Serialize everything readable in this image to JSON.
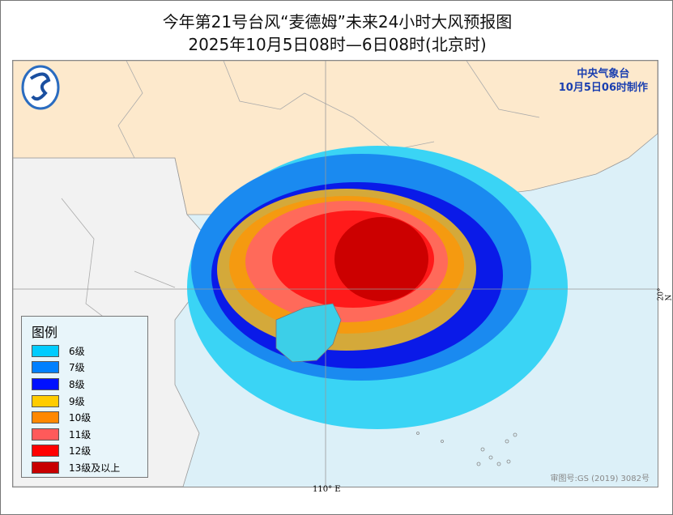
{
  "title": "今年第21号台风“麦德姆”未来24小时大风预报图",
  "subtitle": "2025年10月5日08时—6日08时(北京时)",
  "agency": {
    "name": "中央气象台",
    "issued": "10月5日06时制作"
  },
  "legend": {
    "title": "图例",
    "items": [
      {
        "label": "6级",
        "color": "#00ccff"
      },
      {
        "label": "7级",
        "color": "#0080ff"
      },
      {
        "label": "8级",
        "color": "#0010ff"
      },
      {
        "label": "9级",
        "color": "#ffcc00"
      },
      {
        "label": "10级",
        "color": "#ff8800"
      },
      {
        "label": "11级",
        "color": "#ff5a5a"
      },
      {
        "label": "12级",
        "color": "#ff0000"
      },
      {
        "label": "13级及以上",
        "color": "#c80000"
      }
    ]
  },
  "axes": {
    "lon_label": "110° E",
    "lat_label": "20° N"
  },
  "approval": "审图号:GS (2019) 3082号",
  "colors": {
    "sea": "#dcf0f8",
    "land_china": "#fde9cc",
    "land_other": "#f2f2f2"
  }
}
